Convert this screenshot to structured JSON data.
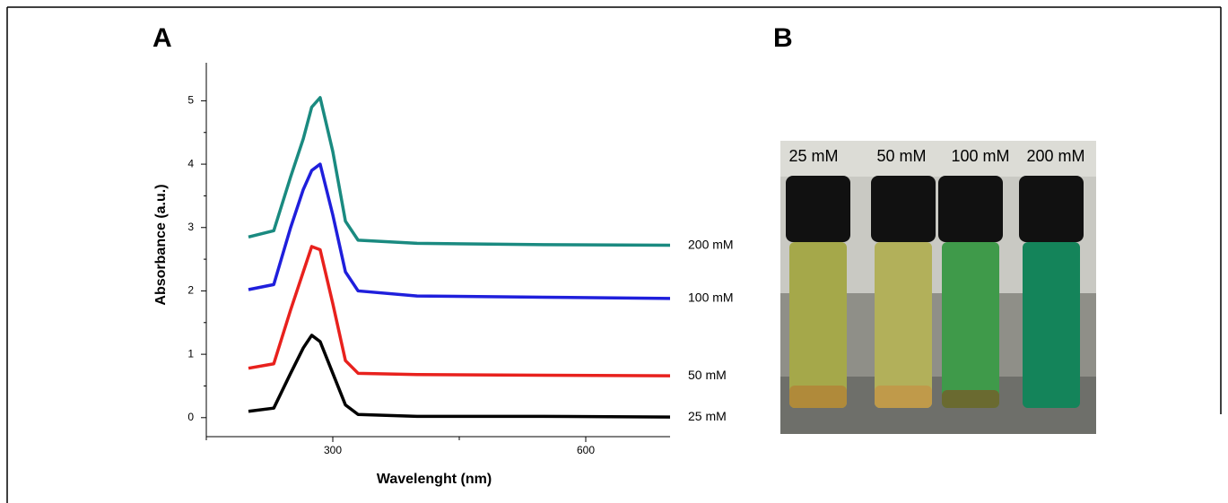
{
  "panel_labels": [
    "A",
    "B"
  ],
  "chart_data": {
    "type": "line",
    "xlabel": "Wavelenght (nm)",
    "ylabel": "Absorbance (a.u.)",
    "x": [
      200,
      230,
      250,
      265,
      275,
      285,
      300,
      315,
      330,
      400,
      550,
      700
    ],
    "series": [
      {
        "name": "25 mM",
        "color": "#000000",
        "values": [
          0.1,
          0.15,
          0.7,
          1.1,
          1.3,
          1.2,
          0.7,
          0.2,
          0.05,
          0.02,
          0.02,
          0.01
        ]
      },
      {
        "name": "50 mM",
        "color": "#e8211d",
        "values": [
          0.78,
          0.85,
          1.7,
          2.3,
          2.7,
          2.65,
          1.8,
          0.9,
          0.7,
          0.68,
          0.67,
          0.66
        ]
      },
      {
        "name": "100 mM",
        "color": "#1f1fdc",
        "values": [
          2.02,
          2.1,
          3.0,
          3.6,
          3.9,
          4.0,
          3.2,
          2.3,
          2.0,
          1.92,
          1.9,
          1.88
        ]
      },
      {
        "name": "200 mM",
        "color": "#1a8a80",
        "values": [
          2.85,
          2.95,
          3.8,
          4.4,
          4.9,
          5.05,
          4.2,
          3.1,
          2.8,
          2.75,
          2.73,
          2.72
        ]
      }
    ],
    "xlim": [
      150,
      700
    ],
    "xticks": [
      300,
      600
    ],
    "xticks_minor": [
      150,
      450
    ],
    "ylim": [
      -0.3,
      5.6
    ],
    "yticks": [
      0,
      1,
      2,
      3,
      4,
      5
    ],
    "yticks_minor": [
      0.5,
      1.5,
      2.5,
      3.5,
      4.5
    ]
  },
  "photo": {
    "labels": [
      "25 mM",
      "50 mM",
      "100 mM",
      "200 mM"
    ]
  }
}
